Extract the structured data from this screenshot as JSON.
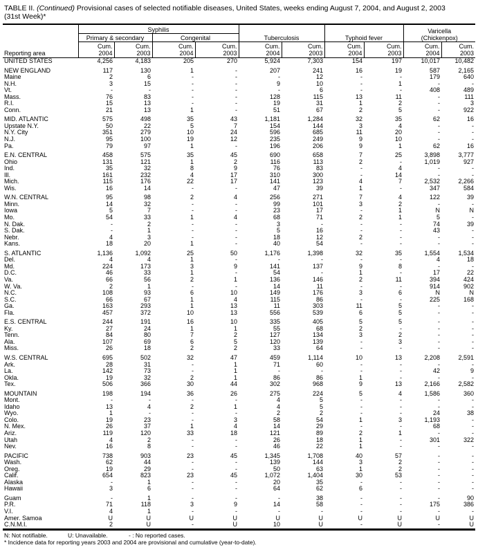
{
  "title": {
    "prefix": "TABLE II.",
    "continued": "(Continued)",
    "text": "Provisional cases of selected notifiable diseases, United States, weeks ending August 7, 2004, and August 2, 2003",
    "week": "(31st Week)*"
  },
  "header": {
    "syphilis": "Syphilis",
    "primary_secondary": "Primary & secondary",
    "congenital": "Congenital",
    "tuberculosis": "Tuberculosis",
    "typhoid": "Typhoid fever",
    "varicella": "Varicella",
    "chickenpox": "(Chickenpox)",
    "reporting_area": "Reporting area",
    "cum": "Cum.",
    "years": [
      "2004",
      "2003",
      "2004",
      "2003",
      "2004",
      "2003",
      "2004",
      "2003",
      "2004",
      "2003"
    ]
  },
  "groups": [
    [
      [
        "UNITED STATES",
        "4,256",
        "4,183",
        "205",
        "270",
        "5,924",
        "7,303",
        "154",
        "197",
        "10,017",
        "10,482"
      ]
    ],
    [
      [
        "NEW ENGLAND",
        "117",
        "130",
        "1",
        "-",
        "207",
        "241",
        "16",
        "19",
        "587",
        "2,165"
      ],
      [
        "Maine",
        "2",
        "6",
        "-",
        "-",
        "-",
        "12",
        "-",
        "-",
        "179",
        "640"
      ],
      [
        "N.H.",
        "3",
        "15",
        "-",
        "-",
        "9",
        "10",
        "-",
        "1",
        "-",
        "-"
      ],
      [
        "Vt.",
        "-",
        "-",
        "-",
        "-",
        "-",
        "6",
        "-",
        "-",
        "408",
        "489"
      ],
      [
        "Mass.",
        "76",
        "83",
        "-",
        "-",
        "128",
        "115",
        "13",
        "11",
        "-",
        "111"
      ],
      [
        "R.I.",
        "15",
        "13",
        "-",
        "-",
        "19",
        "31",
        "1",
        "2",
        "-",
        "3"
      ],
      [
        "Conn.",
        "21",
        "13",
        "1",
        "-",
        "51",
        "67",
        "2",
        "5",
        "-",
        "922"
      ]
    ],
    [
      [
        "MID. ATLANTIC",
        "575",
        "498",
        "35",
        "43",
        "1,181",
        "1,284",
        "32",
        "35",
        "62",
        "16"
      ],
      [
        "Upstate N.Y.",
        "50",
        "22",
        "5",
        "7",
        "154",
        "144",
        "3",
        "4",
        "-",
        "-"
      ],
      [
        "N.Y. City",
        "351",
        "279",
        "10",
        "24",
        "596",
        "685",
        "11",
        "20",
        "-",
        "-"
      ],
      [
        "N.J.",
        "95",
        "100",
        "19",
        "12",
        "235",
        "249",
        "9",
        "10",
        "-",
        "-"
      ],
      [
        "Pa.",
        "79",
        "97",
        "1",
        "-",
        "196",
        "206",
        "9",
        "1",
        "62",
        "16"
      ]
    ],
    [
      [
        "E.N. CENTRAL",
        "458",
        "575",
        "35",
        "45",
        "690",
        "658",
        "7",
        "25",
        "3,898",
        "3,777"
      ],
      [
        "Ohio",
        "131",
        "121",
        "1",
        "2",
        "116",
        "113",
        "2",
        "-",
        "1,019",
        "927"
      ],
      [
        "Ind.",
        "35",
        "32",
        "8",
        "9",
        "76",
        "83",
        "-",
        "4",
        "-",
        "-"
      ],
      [
        "Ill.",
        "161",
        "232",
        "4",
        "17",
        "310",
        "300",
        "-",
        "14",
        "-",
        "-"
      ],
      [
        "Mich.",
        "115",
        "176",
        "22",
        "17",
        "141",
        "123",
        "4",
        "7",
        "2,532",
        "2,266"
      ],
      [
        "Wis.",
        "16",
        "14",
        "-",
        "-",
        "47",
        "39",
        "1",
        "-",
        "347",
        "584"
      ]
    ],
    [
      [
        "W.N. CENTRAL",
        "95",
        "98",
        "2",
        "4",
        "256",
        "271",
        "7",
        "4",
        "122",
        "39"
      ],
      [
        "Minn.",
        "14",
        "32",
        "-",
        "-",
        "99",
        "101",
        "3",
        "2",
        "-",
        "-"
      ],
      [
        "Iowa",
        "5",
        "7",
        "-",
        "-",
        "23",
        "17",
        "-",
        "1",
        "N",
        "N"
      ],
      [
        "Mo.",
        "54",
        "33",
        "1",
        "4",
        "68",
        "71",
        "2",
        "1",
        "5",
        "-"
      ],
      [
        "N. Dak.",
        "-",
        "2",
        "-",
        "-",
        "3",
        "-",
        "-",
        "-",
        "74",
        "39"
      ],
      [
        "S. Dak.",
        "-",
        "1",
        "-",
        "-",
        "5",
        "16",
        "-",
        "-",
        "43",
        "-"
      ],
      [
        "Nebr.",
        "4",
        "3",
        "-",
        "-",
        "18",
        "12",
        "2",
        "-",
        "-",
        "-"
      ],
      [
        "Kans.",
        "18",
        "20",
        "1",
        "-",
        "40",
        "54",
        "-",
        "-",
        "-",
        "-"
      ]
    ],
    [
      [
        "S. ATLANTIC",
        "1,136",
        "1,092",
        "25",
        "50",
        "1,176",
        "1,398",
        "32",
        "35",
        "1,554",
        "1,534"
      ],
      [
        "Del.",
        "4",
        "4",
        "1",
        "-",
        "-",
        "-",
        "-",
        "-",
        "4",
        "18"
      ],
      [
        "Md.",
        "224",
        "173",
        "3",
        "9",
        "141",
        "137",
        "9",
        "8",
        "-",
        "-"
      ],
      [
        "D.C.",
        "46",
        "33",
        "1",
        "-",
        "54",
        "-",
        "1",
        "-",
        "17",
        "22"
      ],
      [
        "Va.",
        "66",
        "56",
        "2",
        "1",
        "136",
        "146",
        "2",
        "11",
        "394",
        "424"
      ],
      [
        "W. Va.",
        "2",
        "1",
        "-",
        "-",
        "14",
        "11",
        "-",
        "-",
        "914",
        "902"
      ],
      [
        "N.C.",
        "108",
        "93",
        "6",
        "10",
        "149",
        "176",
        "3",
        "6",
        "N",
        "N"
      ],
      [
        "S.C.",
        "66",
        "67",
        "1",
        "4",
        "115",
        "86",
        "-",
        "-",
        "225",
        "168"
      ],
      [
        "Ga.",
        "163",
        "293",
        "1",
        "13",
        "11",
        "303",
        "11",
        "5",
        "-",
        "-"
      ],
      [
        "Fla.",
        "457",
        "372",
        "10",
        "13",
        "556",
        "539",
        "6",
        "5",
        "-",
        "-"
      ]
    ],
    [
      [
        "E.S. CENTRAL",
        "244",
        "191",
        "16",
        "10",
        "335",
        "405",
        "5",
        "5",
        "-",
        "-"
      ],
      [
        "Ky.",
        "27",
        "24",
        "1",
        "1",
        "55",
        "68",
        "2",
        "-",
        "-",
        "-"
      ],
      [
        "Tenn.",
        "84",
        "80",
        "7",
        "2",
        "127",
        "134",
        "3",
        "2",
        "-",
        "-"
      ],
      [
        "Ala.",
        "107",
        "69",
        "6",
        "5",
        "120",
        "139",
        "-",
        "3",
        "-",
        "-"
      ],
      [
        "Miss.",
        "26",
        "18",
        "2",
        "2",
        "33",
        "64",
        "-",
        "-",
        "-",
        "-"
      ]
    ],
    [
      [
        "W.S. CENTRAL",
        "695",
        "502",
        "32",
        "47",
        "459",
        "1,114",
        "10",
        "13",
        "2,208",
        "2,591"
      ],
      [
        "Ark.",
        "28",
        "31",
        "-",
        "1",
        "71",
        "60",
        "-",
        "-",
        "-",
        "-"
      ],
      [
        "La.",
        "142",
        "73",
        "-",
        "1",
        "-",
        "-",
        "-",
        "-",
        "42",
        "9"
      ],
      [
        "Okla.",
        "19",
        "32",
        "2",
        "1",
        "86",
        "86",
        "1",
        "-",
        "-",
        "-"
      ],
      [
        "Tex.",
        "506",
        "366",
        "30",
        "44",
        "302",
        "968",
        "9",
        "13",
        "2,166",
        "2,582"
      ]
    ],
    [
      [
        "MOUNTAIN",
        "198",
        "194",
        "36",
        "26",
        "275",
        "224",
        "5",
        "4",
        "1,586",
        "360"
      ],
      [
        "Mont.",
        "-",
        "-",
        "-",
        "-",
        "4",
        "5",
        "-",
        "-",
        "-",
        "-"
      ],
      [
        "Idaho",
        "13",
        "4",
        "2",
        "1",
        "4",
        "5",
        "-",
        "-",
        "-",
        "-"
      ],
      [
        "Wyo.",
        "1",
        "-",
        "-",
        "-",
        "2",
        "2",
        "-",
        "-",
        "24",
        "38"
      ],
      [
        "Colo.",
        "19",
        "23",
        "-",
        "3",
        "58",
        "54",
        "1",
        "3",
        "1,193",
        "-"
      ],
      [
        "N. Mex.",
        "26",
        "37",
        "1",
        "4",
        "14",
        "29",
        "-",
        "-",
        "68",
        "-"
      ],
      [
        "Ariz.",
        "119",
        "120",
        "33",
        "18",
        "121",
        "89",
        "2",
        "1",
        "-",
        "-"
      ],
      [
        "Utah",
        "4",
        "2",
        "-",
        "-",
        "26",
        "18",
        "1",
        "-",
        "301",
        "322"
      ],
      [
        "Nev.",
        "16",
        "8",
        "-",
        "-",
        "46",
        "22",
        "1",
        "-",
        "-",
        "-"
      ]
    ],
    [
      [
        "PACIFIC",
        "738",
        "903",
        "23",
        "45",
        "1,345",
        "1,708",
        "40",
        "57",
        "-",
        "-"
      ],
      [
        "Wash.",
        "62",
        "44",
        "-",
        "-",
        "139",
        "144",
        "3",
        "2",
        "-",
        "-"
      ],
      [
        "Oreg.",
        "19",
        "29",
        "-",
        "-",
        "50",
        "63",
        "1",
        "2",
        "-",
        "-"
      ],
      [
        "Calif.",
        "654",
        "823",
        "23",
        "45",
        "1,072",
        "1,404",
        "30",
        "53",
        "-",
        "-"
      ],
      [
        "Alaska",
        "-",
        "1",
        "-",
        "-",
        "20",
        "35",
        "-",
        "-",
        "-",
        "-"
      ],
      [
        "Hawaii",
        "3",
        "6",
        "-",
        "-",
        "64",
        "62",
        "6",
        "-",
        "-",
        "-"
      ]
    ],
    [
      [
        "Guam",
        "-",
        "1",
        "-",
        "-",
        "-",
        "38",
        "-",
        "-",
        "-",
        "90"
      ],
      [
        "P.R.",
        "71",
        "118",
        "3",
        "9",
        "14",
        "58",
        "-",
        "-",
        "175",
        "386"
      ],
      [
        "V.I.",
        "4",
        "1",
        "-",
        "-",
        "-",
        "-",
        "-",
        "-",
        "-",
        "-"
      ],
      [
        "Amer. Samoa",
        "U",
        "U",
        "U",
        "U",
        "U",
        "U",
        "U",
        "U",
        "U",
        "U"
      ],
      [
        "C.N.M.I.",
        "2",
        "U",
        "-",
        "U",
        "10",
        "U",
        "-",
        "U",
        "-",
        "U"
      ]
    ]
  ],
  "footer": {
    "n": "N: Not notifiable.",
    "u": "U: Unavailable.",
    "dash": "- : No reported cases.",
    "note": "* Incidence data for reporting years 2003 and 2004 are provisional and cumulative (year-to-date)."
  }
}
